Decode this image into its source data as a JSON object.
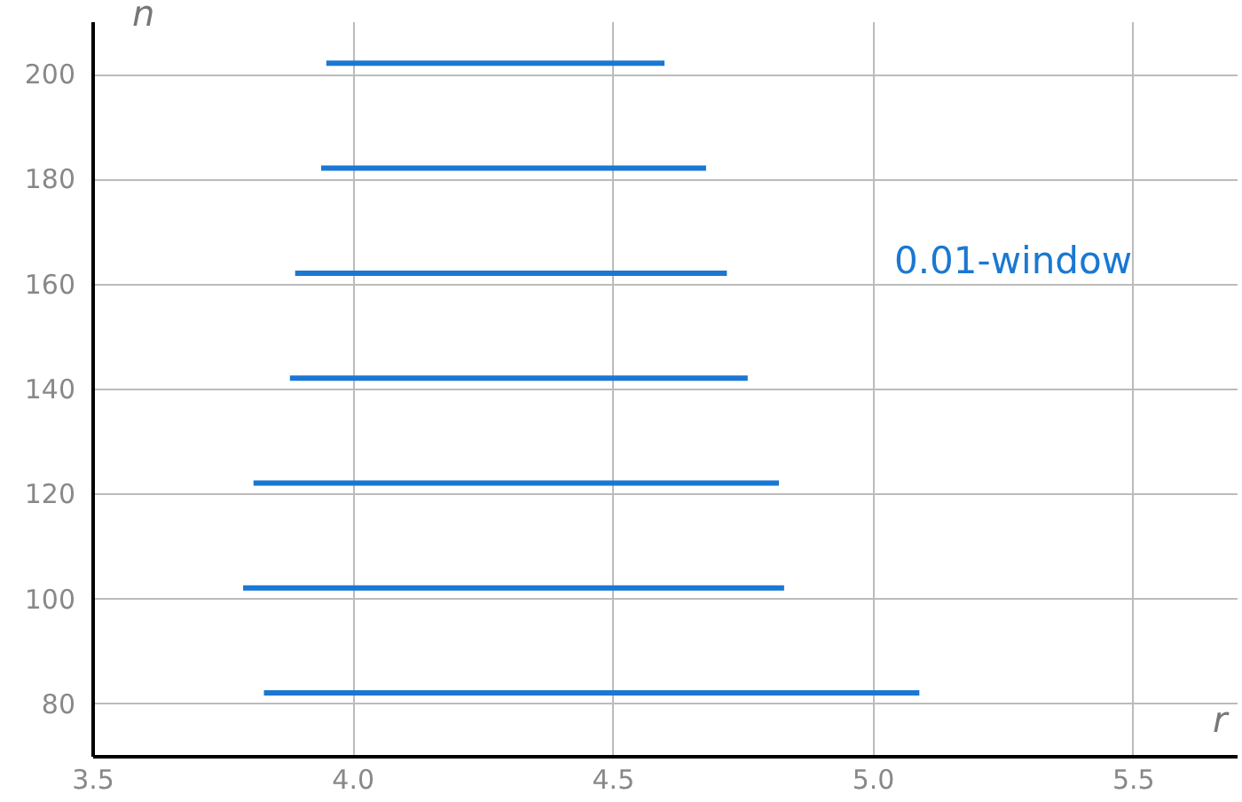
{
  "chart_data": {
    "type": "line",
    "xlabel": "r",
    "ylabel": "n",
    "xlim": [
      3.5,
      5.7
    ],
    "ylim": [
      70,
      210
    ],
    "xticks": [
      3.5,
      {
        "value": 4,
        "label": "4.0"
      },
      4.5,
      {
        "value": 5,
        "label": "5.0"
      },
      5.5
    ],
    "yticks": [
      80,
      100,
      120,
      140,
      160,
      180,
      200
    ],
    "grid": true,
    "line_style": "solid",
    "annotations": [
      "0.01-window"
    ],
    "series": [
      {
        "color": "#1a78d2",
        "x": [
          3.95,
          4.6
        ],
        "values": [
          202,
          202
        ]
      },
      {
        "color": "#1a78d2",
        "x": [
          3.94,
          4.68
        ],
        "values": [
          182,
          182
        ]
      },
      {
        "color": "#1a78d2",
        "x": [
          3.89,
          4.72
        ],
        "values": [
          162,
          162
        ]
      },
      {
        "color": "#1a78d2",
        "x": [
          3.88,
          4.76
        ],
        "values": [
          142,
          142
        ]
      },
      {
        "color": "#1a78d2",
        "x": [
          3.81,
          4.82
        ],
        "values": [
          122,
          122
        ]
      },
      {
        "color": "#1a78d2",
        "x": [
          3.79,
          4.83
        ],
        "values": [
          102,
          102
        ]
      },
      {
        "color": "#1a78d2",
        "x": [
          3.83,
          5.09
        ],
        "values": [
          82,
          82
        ]
      }
    ]
  }
}
